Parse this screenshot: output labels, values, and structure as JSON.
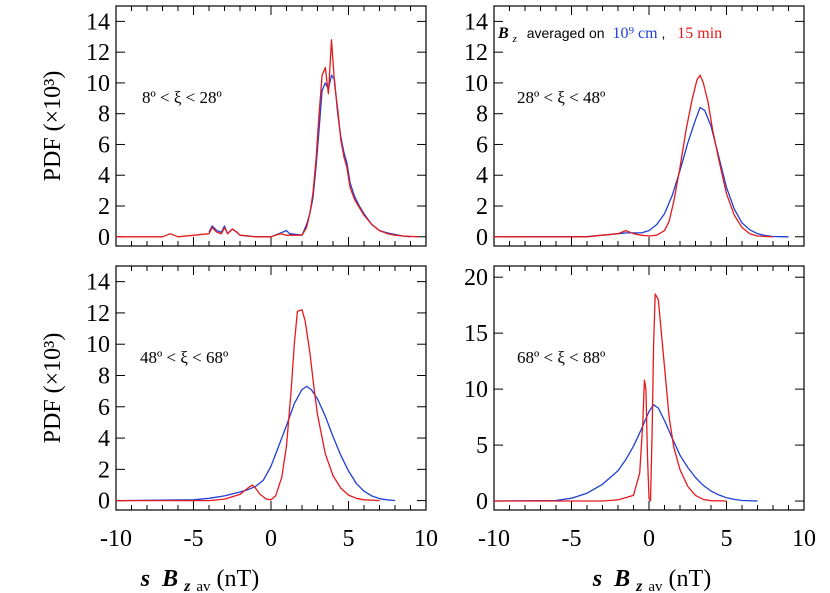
{
  "chart_data": [
    {
      "type": "line",
      "ylabel": "PDF (×10³)",
      "annotation": "8º < ξ < 28º",
      "xlim": [
        -10,
        10
      ],
      "ylim": [
        -0.6,
        15
      ],
      "yticks": [
        "0",
        "2",
        "4",
        "6",
        "8",
        "10",
        "12",
        "14"
      ],
      "series": [
        {
          "name": "10⁹ cm",
          "color": "#1f3fd6",
          "points": [
            [
              -4,
              0.3
            ],
            [
              -3.8,
              0.7
            ],
            [
              -3.5,
              0.4
            ],
            [
              -3.2,
              0.3
            ],
            [
              -3,
              0.7
            ],
            [
              -2.8,
              0.2
            ],
            [
              -2.5,
              0.5
            ],
            [
              -2.2,
              0.3
            ],
            [
              -2,
              0.1
            ],
            [
              -1,
              0
            ],
            [
              0,
              0
            ],
            [
              0.5,
              0.2
            ],
            [
              1,
              0.4
            ],
            [
              1.2,
              0.2
            ],
            [
              2,
              0.1
            ],
            [
              2.3,
              0.8
            ],
            [
              2.5,
              1.5
            ],
            [
              2.7,
              2.5
            ],
            [
              2.9,
              4.5
            ],
            [
              3.1,
              7
            ],
            [
              3.3,
              9.5
            ],
            [
              3.5,
              10
            ],
            [
              3.7,
              9.6
            ],
            [
              3.9,
              10.5
            ],
            [
              4.1,
              10.2
            ],
            [
              4.3,
              8
            ],
            [
              4.5,
              6.5
            ],
            [
              4.7,
              5.5
            ],
            [
              4.9,
              4.8
            ],
            [
              5.1,
              3.5
            ],
            [
              5.4,
              2.6
            ],
            [
              5.7,
              2
            ],
            [
              6,
              1.5
            ],
            [
              6.5,
              0.8
            ],
            [
              7,
              0.4
            ],
            [
              7.5,
              0.25
            ],
            [
              8,
              0.15
            ],
            [
              8.5,
              0.05
            ],
            [
              9,
              0
            ]
          ]
        },
        {
          "name": "15 min",
          "color": "#e41a1c",
          "points": [
            [
              -10,
              0
            ],
            [
              -7,
              0
            ],
            [
              -6.5,
              0.2
            ],
            [
              -6,
              0
            ],
            [
              -4,
              0.2
            ],
            [
              -3.8,
              0.6
            ],
            [
              -3.5,
              0.3
            ],
            [
              -3.2,
              0.2
            ],
            [
              -3,
              0.6
            ],
            [
              -2.8,
              0.2
            ],
            [
              -2.5,
              0.5
            ],
            [
              -2.2,
              0.3
            ],
            [
              -2,
              0.1
            ],
            [
              -1,
              0
            ],
            [
              0,
              0
            ],
            [
              0.6,
              0.2
            ],
            [
              1,
              0.1
            ],
            [
              2,
              0.1
            ],
            [
              2.3,
              0.6
            ],
            [
              2.5,
              1.5
            ],
            [
              2.7,
              2.8
            ],
            [
              2.9,
              5
            ],
            [
              3.1,
              8
            ],
            [
              3.3,
              10.5
            ],
            [
              3.5,
              11
            ],
            [
              3.7,
              9.3
            ],
            [
              3.9,
              12.8
            ],
            [
              4.1,
              10
            ],
            [
              4.3,
              8.3
            ],
            [
              4.5,
              6.3
            ],
            [
              4.7,
              5.2
            ],
            [
              4.9,
              4.5
            ],
            [
              5.1,
              3.2
            ],
            [
              5.4,
              2.4
            ],
            [
              5.7,
              1.9
            ],
            [
              6,
              1.4
            ],
            [
              6.5,
              0.8
            ],
            [
              7,
              0.4
            ],
            [
              7.5,
              0.2
            ],
            [
              8,
              0.1
            ],
            [
              8.5,
              0.05
            ],
            [
              9.5,
              0
            ]
          ]
        }
      ]
    },
    {
      "type": "line",
      "annotation": "28º < ξ < 48º",
      "legend": {
        "prefix": "B",
        "prefix_sub": "z",
        "text": "averaged on",
        "blue_label": "10⁹ cm",
        "sep": ",",
        "red_label": "15 min"
      },
      "xlim": [
        -10,
        10
      ],
      "ylim": [
        -0.6,
        15
      ],
      "yticks": [
        "0",
        "2",
        "4",
        "6",
        "8",
        "10",
        "12",
        "14"
      ],
      "series": [
        {
          "name": "10⁹ cm",
          "color": "#1f3fd6",
          "points": [
            [
              -10,
              0
            ],
            [
              -4,
              0.02
            ],
            [
              -3,
              0.1
            ],
            [
              -2,
              0.2
            ],
            [
              -1.5,
              0.25
            ],
            [
              -1,
              0.25
            ],
            [
              -0.5,
              0.25
            ],
            [
              0,
              0.4
            ],
            [
              0.5,
              0.8
            ],
            [
              1,
              1.5
            ],
            [
              1.5,
              2.7
            ],
            [
              2,
              4.3
            ],
            [
              2.5,
              6.1
            ],
            [
              3,
              7.6
            ],
            [
              3.3,
              8.4
            ],
            [
              3.6,
              8.2
            ],
            [
              4,
              7.2
            ],
            [
              4.5,
              5.2
            ],
            [
              5,
              3.2
            ],
            [
              5.5,
              1.8
            ],
            [
              6,
              0.9
            ],
            [
              6.5,
              0.45
            ],
            [
              7,
              0.2
            ],
            [
              7.5,
              0.08
            ],
            [
              8,
              0.02
            ],
            [
              9,
              0
            ]
          ]
        },
        {
          "name": "15 min",
          "color": "#e41a1c",
          "points": [
            [
              -10,
              0
            ],
            [
              -4,
              0
            ],
            [
              -3,
              0.1
            ],
            [
              -2,
              0.2
            ],
            [
              -1.5,
              0.4
            ],
            [
              -1,
              0.2
            ],
            [
              -0.5,
              0.1
            ],
            [
              0,
              0.05
            ],
            [
              0.5,
              0.1
            ],
            [
              1,
              0.4
            ],
            [
              1.3,
              1
            ],
            [
              1.6,
              2.3
            ],
            [
              2,
              4.5
            ],
            [
              2.4,
              7
            ],
            [
              2.8,
              9
            ],
            [
              3.1,
              10.2
            ],
            [
              3.3,
              10.5
            ],
            [
              3.5,
              10
            ],
            [
              3.8,
              8.8
            ],
            [
              4.1,
              7
            ],
            [
              4.5,
              5
            ],
            [
              5,
              2.8
            ],
            [
              5.5,
              1.4
            ],
            [
              6,
              0.6
            ],
            [
              6.5,
              0.2
            ],
            [
              7,
              0.05
            ],
            [
              8,
              0
            ]
          ]
        }
      ]
    },
    {
      "type": "line",
      "ylabel": "PDF (×10³)",
      "annotation": "48º < ξ < 68º",
      "xlim": [
        -10,
        10
      ],
      "ylim": [
        -0.6,
        15
      ],
      "yticks": [
        "0",
        "2",
        "4",
        "6",
        "8",
        "10",
        "12",
        "14"
      ],
      "xticks": [
        "-10",
        "-5",
        "0",
        "5",
        "10"
      ],
      "series": [
        {
          "name": "10⁹ cm",
          "color": "#1f3fd6",
          "points": [
            [
              -10,
              0
            ],
            [
              -5,
              0.05
            ],
            [
              -4,
              0.15
            ],
            [
              -3,
              0.3
            ],
            [
              -2,
              0.55
            ],
            [
              -1.5,
              0.7
            ],
            [
              -1,
              0.9
            ],
            [
              -0.5,
              1.3
            ],
            [
              0,
              2.2
            ],
            [
              0.5,
              3.5
            ],
            [
              1,
              4.8
            ],
            [
              1.5,
              6.2
            ],
            [
              2,
              7.1
            ],
            [
              2.3,
              7.3
            ],
            [
              2.6,
              7.1
            ],
            [
              3,
              6.5
            ],
            [
              3.5,
              5.4
            ],
            [
              4,
              4.1
            ],
            [
              4.5,
              2.9
            ],
            [
              5,
              1.9
            ],
            [
              5.5,
              1.1
            ],
            [
              6,
              0.6
            ],
            [
              6.5,
              0.3
            ],
            [
              7,
              0.12
            ],
            [
              7.5,
              0.05
            ],
            [
              8,
              0
            ]
          ]
        },
        {
          "name": "15 min",
          "color": "#e41a1c",
          "points": [
            [
              -10,
              0
            ],
            [
              -4,
              0
            ],
            [
              -3,
              0.1
            ],
            [
              -2,
              0.4
            ],
            [
              -1.5,
              0.8
            ],
            [
              -1.2,
              1
            ],
            [
              -1,
              0.8
            ],
            [
              -0.7,
              0.4
            ],
            [
              -0.3,
              0.1
            ],
            [
              0,
              0.05
            ],
            [
              0.3,
              0.3
            ],
            [
              0.7,
              1.5
            ],
            [
              1,
              3.5
            ],
            [
              1.3,
              7
            ],
            [
              1.5,
              10
            ],
            [
              1.7,
              12.1
            ],
            [
              2,
              12.2
            ],
            [
              2.2,
              11.5
            ],
            [
              2.5,
              9.5
            ],
            [
              2.8,
              7
            ],
            [
              3,
              5.5
            ],
            [
              3.5,
              3
            ],
            [
              4,
              1.6
            ],
            [
              4.5,
              0.8
            ],
            [
              5,
              0.35
            ],
            [
              5.5,
              0.15
            ],
            [
              6,
              0.05
            ],
            [
              7,
              0
            ]
          ]
        }
      ]
    },
    {
      "type": "line",
      "annotation": "68º < ξ < 88º",
      "xlim": [
        -10,
        10
      ],
      "ylim": [
        -0.8,
        21
      ],
      "yticks": [
        "0",
        "5",
        "10",
        "15",
        "20"
      ],
      "xticks": [
        "-10",
        "-5",
        "0",
        "5",
        "10"
      ],
      "series": [
        {
          "name": "10⁹ cm",
          "color": "#1f3fd6",
          "points": [
            [
              -10,
              0
            ],
            [
              -6,
              0.05
            ],
            [
              -5,
              0.25
            ],
            [
              -4,
              0.7
            ],
            [
              -3,
              1.5
            ],
            [
              -2,
              2.7
            ],
            [
              -1.5,
              3.7
            ],
            [
              -1,
              4.9
            ],
            [
              -0.5,
              6.4
            ],
            [
              0,
              8
            ],
            [
              0.3,
              8.6
            ],
            [
              0.6,
              8.3
            ],
            [
              1,
              7.2
            ],
            [
              1.5,
              5.6
            ],
            [
              2,
              4.1
            ],
            [
              2.5,
              3
            ],
            [
              3,
              2.1
            ],
            [
              3.5,
              1.4
            ],
            [
              4,
              0.9
            ],
            [
              4.5,
              0.55
            ],
            [
              5,
              0.3
            ],
            [
              5.5,
              0.15
            ],
            [
              6,
              0.05
            ],
            [
              7,
              0
            ]
          ]
        },
        {
          "name": "15 min",
          "color": "#e41a1c",
          "points": [
            [
              -10,
              0
            ],
            [
              -3,
              0
            ],
            [
              -2,
              0.1
            ],
            [
              -1,
              0.5
            ],
            [
              -0.6,
              2.5
            ],
            [
              -0.4,
              7
            ],
            [
              -0.3,
              10.8
            ],
            [
              -0.2,
              10
            ],
            [
              -0.1,
              4
            ],
            [
              0,
              0.2
            ],
            [
              0.1,
              0
            ],
            [
              0.2,
              6
            ],
            [
              0.3,
              14
            ],
            [
              0.4,
              18.5
            ],
            [
              0.6,
              18
            ],
            [
              0.8,
              15
            ],
            [
              1,
              12
            ],
            [
              1.3,
              7.5
            ],
            [
              1.6,
              4.8
            ],
            [
              2,
              2.8
            ],
            [
              2.5,
              1.3
            ],
            [
              3,
              0.5
            ],
            [
              3.5,
              0.15
            ],
            [
              4,
              0.03
            ],
            [
              5,
              0
            ]
          ]
        }
      ]
    }
  ],
  "xaxis_label": {
    "s": "s",
    "B": "B",
    "sub_z": "z",
    "sub_av": "av",
    "unit": "(nT)"
  }
}
